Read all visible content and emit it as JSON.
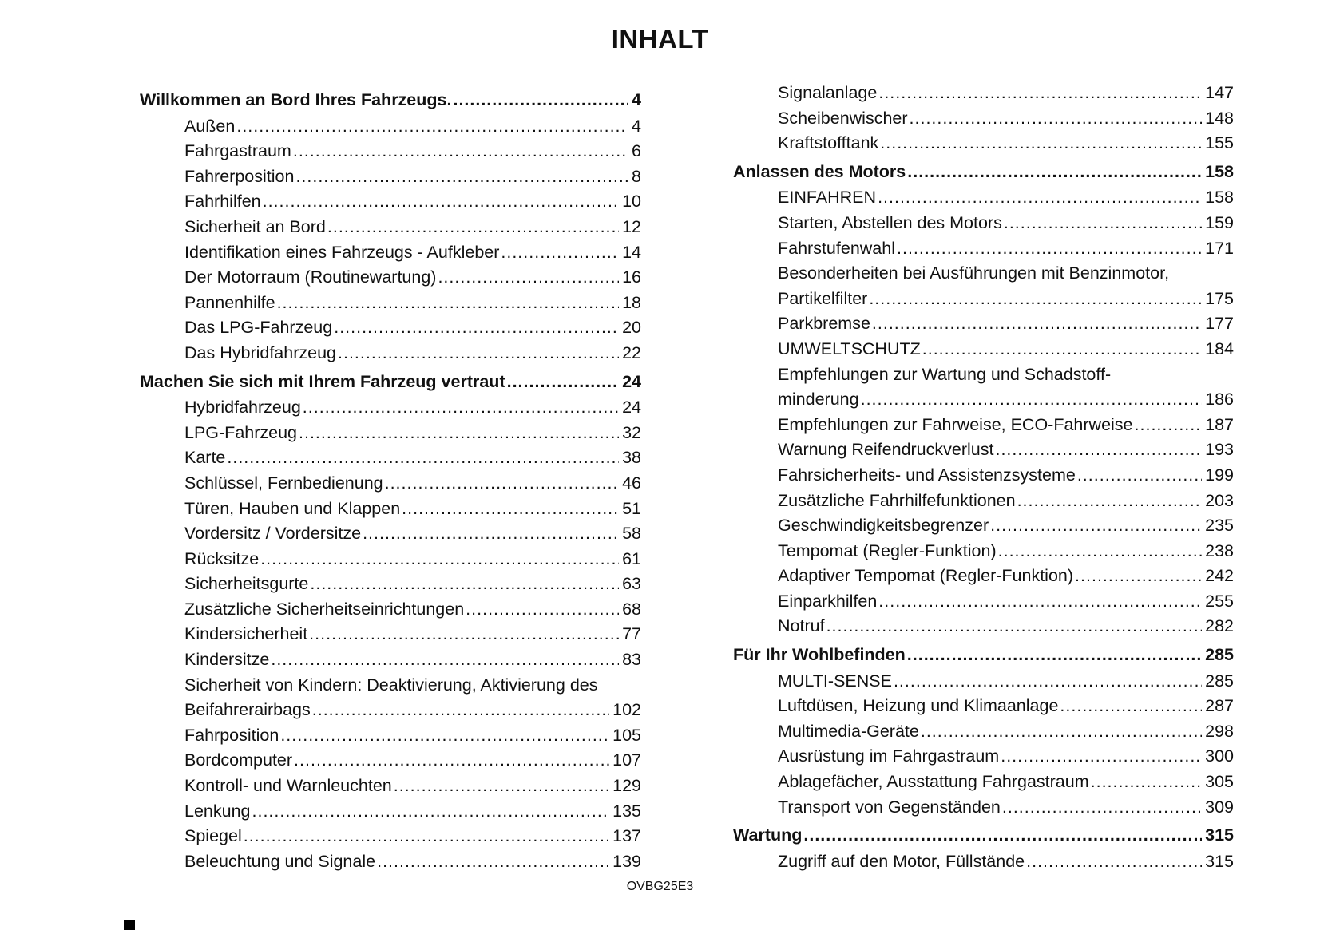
{
  "title": "INHALT",
  "footer_code": "OVBG25E3",
  "left": [
    {
      "level": 0,
      "label": "Willkommen an Bord Ihres Fahrzeugs.",
      "page": "4"
    },
    {
      "level": 1,
      "label": "Außen",
      "page": "4"
    },
    {
      "level": 1,
      "label": "Fahrgastraum",
      "page": "6"
    },
    {
      "level": 1,
      "label": "Fahrerposition",
      "page": "8"
    },
    {
      "level": 1,
      "label": "Fahrhilfen",
      "page": "10"
    },
    {
      "level": 1,
      "label": "Sicherheit an Bord",
      "page": "12"
    },
    {
      "level": 1,
      "label": "Identifikation eines Fahrzeugs - Aufkleber",
      "page": "14"
    },
    {
      "level": 1,
      "label": "Der Motorraum (Routinewartung)",
      "page": "16"
    },
    {
      "level": 1,
      "label": "Pannenhilfe",
      "page": "18"
    },
    {
      "level": 1,
      "label": "Das LPG-Fahrzeug",
      "page": "20"
    },
    {
      "level": 1,
      "label": "Das Hybridfahrzeug",
      "page": "22"
    },
    {
      "level": 0,
      "label": "Machen Sie sich mit Ihrem Fahrzeug vertraut",
      "page": "24"
    },
    {
      "level": 1,
      "label": "Hybridfahrzeug",
      "page": "24"
    },
    {
      "level": 1,
      "label": "LPG-Fahrzeug",
      "page": "32"
    },
    {
      "level": 1,
      "label": "Karte",
      "page": "38"
    },
    {
      "level": 1,
      "label": "Schlüssel, Fernbedienung",
      "page": "46"
    },
    {
      "level": 1,
      "label": "Türen, Hauben und Klappen",
      "page": "51"
    },
    {
      "level": 1,
      "label": "Vordersitz / Vordersitze",
      "page": "58"
    },
    {
      "level": 1,
      "label": "Rücksitze",
      "page": "61"
    },
    {
      "level": 1,
      "label": "Sicherheitsgurte",
      "page": "63"
    },
    {
      "level": 1,
      "label": "Zusätzliche Sicherheitseinrichtungen",
      "page": "68"
    },
    {
      "level": 1,
      "label": "Kindersicherheit",
      "page": "77"
    },
    {
      "level": 1,
      "label": "Kindersitze",
      "page": "83"
    },
    {
      "level": 1,
      "label": "Sicherheit von Kindern: Deaktivierung, Aktivierung des",
      "label2": "Beifahrerairbags",
      "page": "102"
    },
    {
      "level": 1,
      "label": "Fahrposition",
      "page": "105"
    },
    {
      "level": 1,
      "label": "Bordcomputer",
      "page": "107"
    },
    {
      "level": 1,
      "label": "Kontroll- und Warnleuchten",
      "page": "129"
    },
    {
      "level": 1,
      "label": "Lenkung",
      "page": "135"
    },
    {
      "level": 1,
      "label": "Spiegel",
      "page": "137"
    },
    {
      "level": 1,
      "label": "Beleuchtung und Signale",
      "page": "139"
    }
  ],
  "right": [
    {
      "level": 1,
      "label": "Signalanlage",
      "page": "147"
    },
    {
      "level": 1,
      "label": "Scheibenwischer",
      "page": "148"
    },
    {
      "level": 1,
      "label": "Kraftstofftank",
      "page": "155"
    },
    {
      "level": 0,
      "label": "Anlassen des Motors",
      "page": "158"
    },
    {
      "level": 1,
      "label": "EINFAHREN",
      "page": "158"
    },
    {
      "level": 1,
      "label": "Starten, Abstellen des Motors",
      "page": "159"
    },
    {
      "level": 1,
      "label": "Fahrstufenwahl",
      "page": "171"
    },
    {
      "level": 1,
      "label": "Besonderheiten bei Ausführungen mit Benzinmotor,",
      "label2": "Partikelfilter",
      "page": "175"
    },
    {
      "level": 1,
      "label": "Parkbremse",
      "page": "177"
    },
    {
      "level": 1,
      "label": "UMWELTSCHUTZ",
      "page": "184"
    },
    {
      "level": 1,
      "label": "Empfehlungen zur Wartung und Schadstoff-",
      "label2": "minderung",
      "page": "186"
    },
    {
      "level": 1,
      "label": "Empfehlungen zur Fahrweise, ECO-Fahrweise",
      "page": "187"
    },
    {
      "level": 1,
      "label": "Warnung Reifendruckverlust",
      "page": "193"
    },
    {
      "level": 1,
      "label": "Fahrsicherheits- und Assistenzsysteme",
      "page": "199"
    },
    {
      "level": 1,
      "label": "Zusätzliche Fahrhilfefunktionen",
      "page": "203"
    },
    {
      "level": 1,
      "label": "Geschwindigkeitsbegrenzer",
      "page": "235"
    },
    {
      "level": 1,
      "label": "Tempomat (Regler-Funktion)",
      "page": "238"
    },
    {
      "level": 1,
      "label": "Adaptiver Tempomat (Regler-Funktion)",
      "page": "242"
    },
    {
      "level": 1,
      "label": "Einparkhilfen",
      "page": "255"
    },
    {
      "level": 1,
      "label": "Notruf",
      "page": "282"
    },
    {
      "level": 0,
      "label": "Für Ihr Wohlbefinden",
      "page": "285"
    },
    {
      "level": 1,
      "label": "MULTI-SENSE",
      "page": "285"
    },
    {
      "level": 1,
      "label": "Luftdüsen, Heizung und Klimaanlage",
      "page": "287"
    },
    {
      "level": 1,
      "label": "Multimedia-Geräte",
      "page": "298"
    },
    {
      "level": 1,
      "label": "Ausrüstung im Fahrgastraum",
      "page": "300"
    },
    {
      "level": 1,
      "label": "Ablagefächer, Ausstattung Fahrgastraum",
      "page": "305"
    },
    {
      "level": 1,
      "label": "Transport von Gegenständen",
      "page": "309"
    },
    {
      "level": 0,
      "label": "Wartung",
      "page": "315"
    },
    {
      "level": 1,
      "label": "Zugriff auf den Motor, Füllstände",
      "page": "315"
    }
  ]
}
